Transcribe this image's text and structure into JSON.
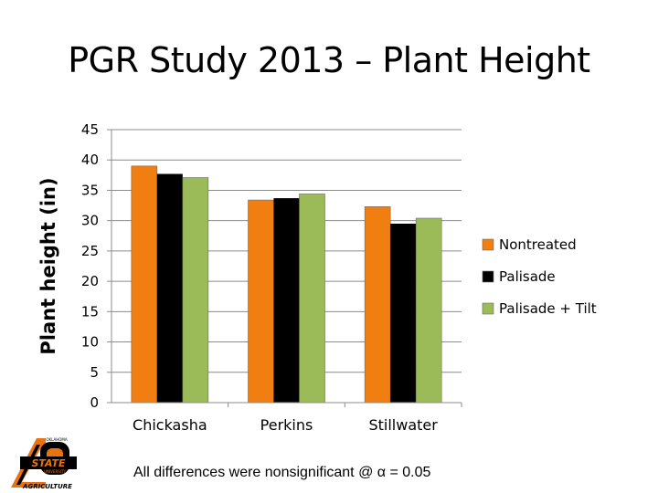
{
  "slide": {
    "title": "PGR Study 2013 – Plant Height",
    "footnote": "All differences were nonsignificant @ α = 0.05"
  },
  "logo": {
    "text_main": "STATE",
    "text_sub": "AGRICULTURE",
    "text_top": "OKLAHOMA",
    "text_small": "UNIVERSITY",
    "colors": {
      "orange": "#E87411",
      "black": "#000000"
    }
  },
  "chart_data": {
    "type": "bar",
    "title": "",
    "xlabel": "",
    "ylabel": "Plant height (in)",
    "ylim": [
      0,
      45
    ],
    "yticks": [
      0,
      5,
      10,
      15,
      20,
      25,
      30,
      35,
      40,
      45
    ],
    "grid": true,
    "legend_position": "right",
    "categories": [
      "Chickasha",
      "Perkins",
      "Stillwater"
    ],
    "series": [
      {
        "name": "Nontreated",
        "color": "#F07E11",
        "values": [
          39.0,
          33.4,
          32.3
        ]
      },
      {
        "name": "Palisade",
        "color": "#000000",
        "values": [
          37.7,
          33.7,
          29.5
        ]
      },
      {
        "name": "Palisade + Tilt",
        "color": "#9BBB59",
        "values": [
          37.1,
          34.4,
          30.4
        ]
      }
    ]
  }
}
